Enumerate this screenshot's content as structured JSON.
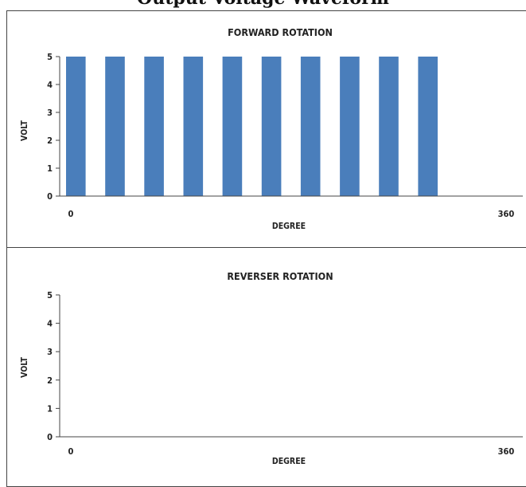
{
  "page": {
    "title": "Output Voltage Waveform"
  },
  "chart_data": [
    {
      "type": "bar",
      "title": "FORWARD ROTATION",
      "xlabel": "DEGREE",
      "ylabel": "VOLT",
      "x_tick_labels": [
        "0",
        "360"
      ],
      "y_ticks": [
        "0",
        "1",
        "2",
        "3",
        "4",
        "5"
      ],
      "ylim": [
        0,
        5
      ],
      "xlim": [
        0,
        360
      ],
      "grid": false,
      "legend": "none",
      "color": "#4a7ebb",
      "bars": [
        {
          "start": 0,
          "end": 16,
          "value": 5
        },
        {
          "start": 32,
          "end": 48,
          "value": 5
        },
        {
          "start": 64,
          "end": 80,
          "value": 5
        },
        {
          "start": 96,
          "end": 112,
          "value": 5
        },
        {
          "start": 128,
          "end": 144,
          "value": 5
        },
        {
          "start": 160,
          "end": 176,
          "value": 5
        },
        {
          "start": 192,
          "end": 208,
          "value": 5
        },
        {
          "start": 224,
          "end": 240,
          "value": 5
        },
        {
          "start": 256,
          "end": 272,
          "value": 5
        },
        {
          "start": 288,
          "end": 304,
          "value": 5
        }
      ]
    },
    {
      "type": "bar",
      "title": "REVERSER ROTATION",
      "xlabel": "DEGREE",
      "ylabel": "VOLT",
      "x_tick_labels": [
        "0",
        "360"
      ],
      "y_ticks": [
        "0",
        "1",
        "2",
        "3",
        "4",
        "5"
      ],
      "ylim": [
        0,
        5
      ],
      "xlim": [
        0,
        360
      ],
      "grid": false,
      "legend": "none",
      "color": "#4a7ebb",
      "bars": []
    }
  ]
}
